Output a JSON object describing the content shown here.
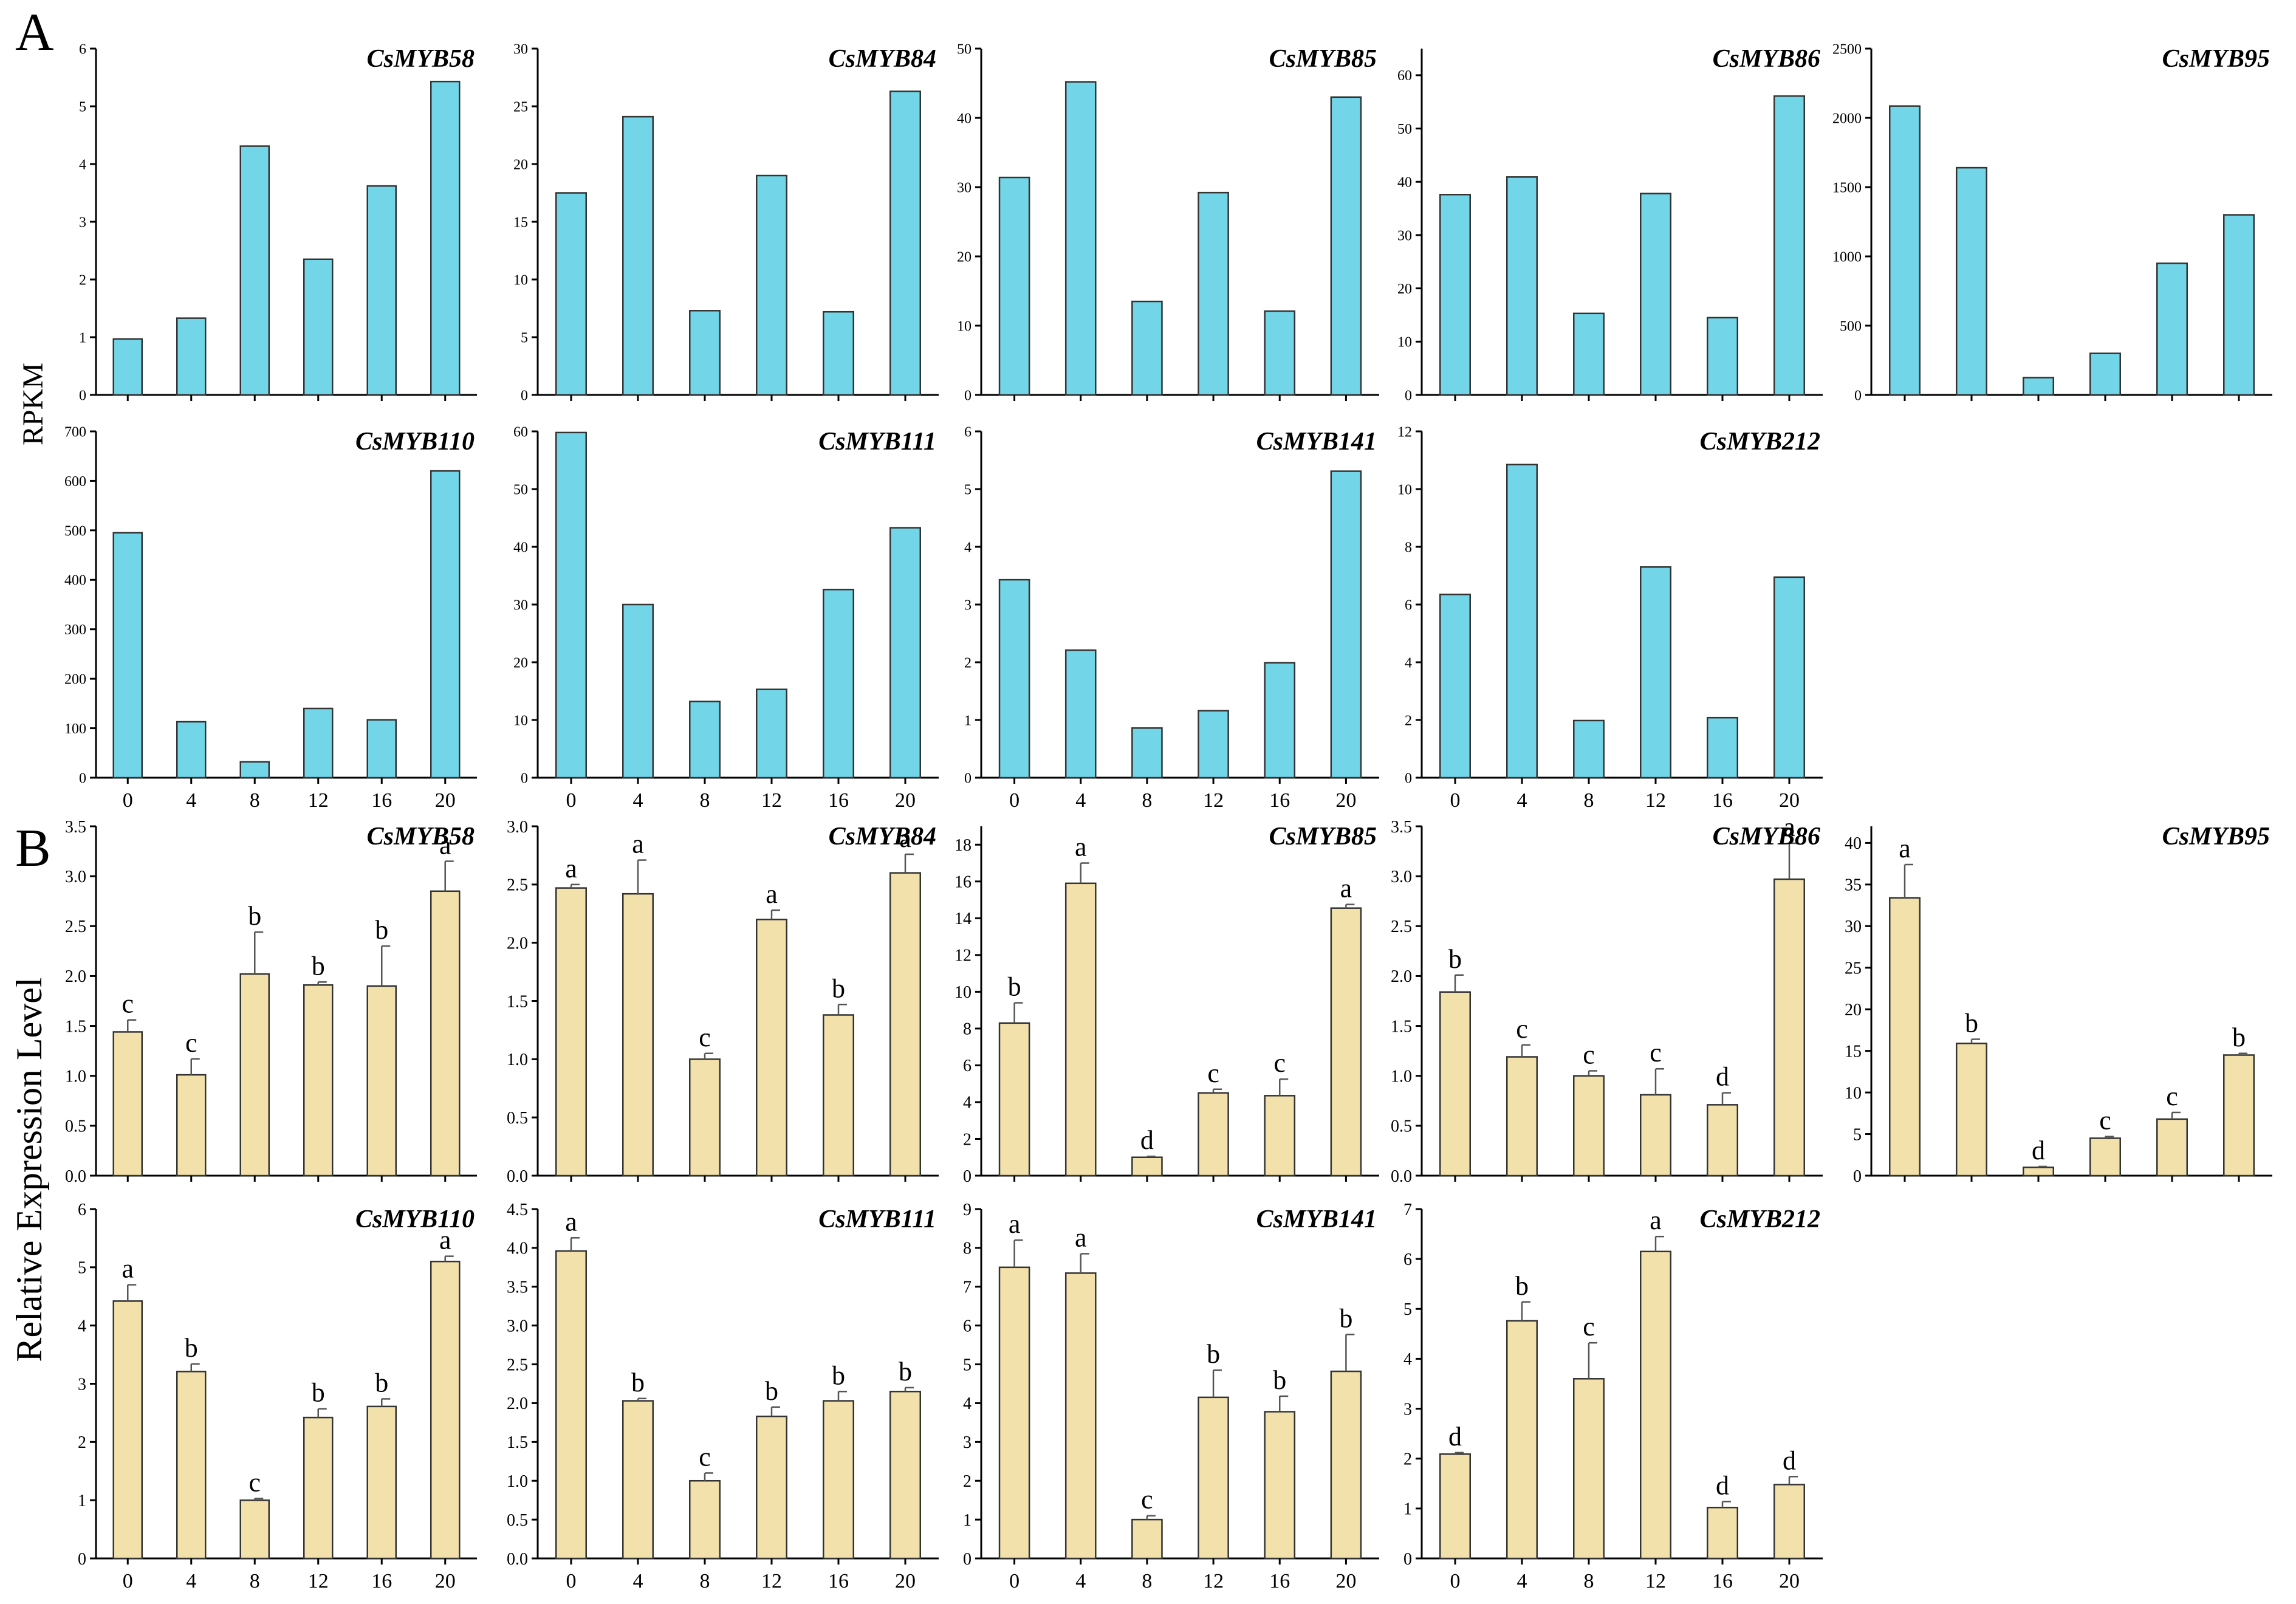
{
  "figure": {
    "panel_a_label": "A",
    "panel_b_label": "B",
    "rpkm_label": "RPKM",
    "rel_label": "Relative Expression Level",
    "bar_color_a": "#72d6e8",
    "bar_color_b": "#f3e1ab",
    "x_categories": [
      "0",
      "4",
      "8",
      "12",
      "16",
      "20"
    ]
  },
  "chart_data": [
    {
      "id": "A-CsMYB58",
      "panel": "A",
      "type": "bar",
      "title": "CsMYB58",
      "ylabel": "RPKM",
      "categories": [
        "0",
        "4",
        "8",
        "12",
        "16",
        "20"
      ],
      "values": [
        0.97,
        1.33,
        4.31,
        2.35,
        3.62,
        5.43
      ],
      "ylim": [
        0,
        6
      ],
      "yticks": [
        0,
        1,
        2,
        3,
        4,
        5,
        6
      ]
    },
    {
      "id": "A-CsMYB84",
      "panel": "A",
      "type": "bar",
      "title": "CsMYB84",
      "ylabel": "RPKM",
      "categories": [
        "0",
        "4",
        "8",
        "12",
        "16",
        "20"
      ],
      "values": [
        17.5,
        24.1,
        7.3,
        19.0,
        7.2,
        26.3
      ],
      "ylim": [
        0,
        30
      ],
      "yticks": [
        0,
        5,
        10,
        15,
        20,
        25,
        30
      ]
    },
    {
      "id": "A-CsMYB85",
      "panel": "A",
      "type": "bar",
      "title": "CsMYB85",
      "ylabel": "RPKM",
      "categories": [
        "0",
        "4",
        "8",
        "12",
        "16",
        "20"
      ],
      "values": [
        31.4,
        45.2,
        13.5,
        29.2,
        12.1,
        43.0
      ],
      "ylim": [
        0,
        50
      ],
      "yticks": [
        0,
        10,
        20,
        30,
        40,
        50
      ]
    },
    {
      "id": "A-CsMYB86",
      "panel": "A",
      "type": "bar",
      "title": "CsMYB86",
      "ylabel": "RPKM",
      "categories": [
        "0",
        "4",
        "8",
        "12",
        "16",
        "20"
      ],
      "values": [
        37.6,
        40.9,
        15.3,
        37.8,
        14.5,
        56.1
      ],
      "ylim": [
        0,
        65
      ],
      "yticks": [
        0,
        10,
        20,
        30,
        40,
        50,
        60
      ]
    },
    {
      "id": "A-CsMYB95",
      "panel": "A",
      "type": "bar",
      "title": "CsMYB95",
      "ylabel": "RPKM",
      "categories": [
        "0",
        "4",
        "8",
        "12",
        "16",
        "20"
      ],
      "values": [
        2085,
        1640,
        125,
        300,
        950,
        1300
      ],
      "ylim": [
        0,
        2500
      ],
      "yticks": [
        0,
        500,
        1000,
        1500,
        2000,
        2500
      ]
    },
    {
      "id": "A-CsMYB110",
      "panel": "A",
      "type": "bar",
      "title": "CsMYB110",
      "ylabel": "RPKM",
      "categories": [
        "0",
        "4",
        "8",
        "12",
        "16",
        "20"
      ],
      "values": [
        495,
        113,
        32,
        140,
        117,
        620
      ],
      "ylim": [
        0,
        700
      ],
      "yticks": [
        0,
        100,
        200,
        300,
        400,
        500,
        600,
        700
      ]
    },
    {
      "id": "A-CsMYB111",
      "panel": "A",
      "type": "bar",
      "title": "CsMYB111",
      "ylabel": "RPKM",
      "categories": [
        "0",
        "4",
        "8",
        "12",
        "16",
        "20"
      ],
      "values": [
        59.8,
        30.0,
        13.2,
        15.3,
        32.6,
        43.3
      ],
      "ylim": [
        0,
        60
      ],
      "yticks": [
        0,
        10,
        20,
        30,
        40,
        50,
        60
      ]
    },
    {
      "id": "A-CsMYB141",
      "panel": "A",
      "type": "bar",
      "title": "CsMYB141",
      "ylabel": "RPKM",
      "categories": [
        "0",
        "4",
        "8",
        "12",
        "16",
        "20"
      ],
      "values": [
        3.43,
        2.21,
        0.86,
        1.16,
        1.99,
        5.31
      ],
      "ylim": [
        0,
        6
      ],
      "yticks": [
        0,
        1,
        2,
        3,
        4,
        5,
        6
      ]
    },
    {
      "id": "A-CsMYB212",
      "panel": "A",
      "type": "bar",
      "title": "CsMYB212",
      "ylabel": "RPKM",
      "categories": [
        "0",
        "4",
        "8",
        "12",
        "16",
        "20"
      ],
      "values": [
        6.35,
        10.85,
        1.98,
        7.3,
        2.08,
        6.95
      ],
      "ylim": [
        0,
        12
      ],
      "yticks": [
        0,
        2,
        4,
        6,
        8,
        10,
        12
      ]
    },
    {
      "id": "B-CsMYB58",
      "panel": "B",
      "type": "bar",
      "title": "CsMYB58",
      "ylabel": "Relative Expression Level",
      "categories": [
        "0",
        "4",
        "8",
        "12",
        "16",
        "20"
      ],
      "values": [
        1.44,
        1.01,
        2.02,
        1.91,
        1.9,
        2.85
      ],
      "errors": [
        0.12,
        0.16,
        0.42,
        0.03,
        0.4,
        0.3
      ],
      "letters": [
        "c",
        "c",
        "b",
        "b",
        "b",
        "a"
      ],
      "ylim": [
        0,
        3.5
      ],
      "yticks": [
        0.0,
        0.5,
        1.0,
        1.5,
        2.0,
        2.5,
        3.0,
        3.5
      ]
    },
    {
      "id": "B-CsMYB84",
      "panel": "B",
      "type": "bar",
      "title": "CsMYB84",
      "ylabel": "Relative Expression Level",
      "categories": [
        "0",
        "4",
        "8",
        "12",
        "16",
        "20"
      ],
      "values": [
        2.47,
        2.42,
        1.0,
        2.2,
        1.38,
        2.6
      ],
      "errors": [
        0.03,
        0.29,
        0.05,
        0.08,
        0.09,
        0.16
      ],
      "letters": [
        "a",
        "a",
        "c",
        "a",
        "b",
        "a"
      ],
      "ylim": [
        0,
        3.0
      ],
      "yticks": [
        0.0,
        0.5,
        1.0,
        1.5,
        2.0,
        2.5,
        3.0
      ]
    },
    {
      "id": "B-CsMYB85",
      "panel": "B",
      "type": "bar",
      "title": "CsMYB85",
      "ylabel": "Relative Expression Level",
      "categories": [
        "0",
        "4",
        "8",
        "12",
        "16",
        "20"
      ],
      "values": [
        8.3,
        15.9,
        1.0,
        4.5,
        4.35,
        14.55
      ],
      "errors": [
        1.1,
        1.1,
        0.05,
        0.2,
        0.9,
        0.2
      ],
      "letters": [
        "b",
        "a",
        "d",
        "c",
        "c",
        "a"
      ],
      "ylim": [
        0,
        19
      ],
      "yticks": [
        0,
        2,
        4,
        6,
        8,
        10,
        12,
        14,
        16,
        18
      ]
    },
    {
      "id": "B-CsMYB86",
      "panel": "B",
      "type": "bar",
      "title": "CsMYB86",
      "ylabel": "Relative Expression Level",
      "categories": [
        "0",
        "4",
        "8",
        "12",
        "16",
        "20"
      ],
      "values": [
        1.84,
        1.19,
        1.0,
        0.81,
        0.71,
        2.97
      ],
      "errors": [
        0.17,
        0.12,
        0.05,
        0.26,
        0.12,
        0.36
      ],
      "letters": [
        "b",
        "c",
        "c",
        "c",
        "d",
        "a"
      ],
      "ylim": [
        0,
        3.5
      ],
      "yticks": [
        0.0,
        0.5,
        1.0,
        1.5,
        2.0,
        2.5,
        3.0,
        3.5
      ]
    },
    {
      "id": "B-CsMYB95",
      "panel": "B",
      "type": "bar",
      "title": "CsMYB95",
      "ylabel": "Relative Expression Level",
      "categories": [
        "0",
        "4",
        "8",
        "12",
        "16",
        "20"
      ],
      "values": [
        33.4,
        15.9,
        1.0,
        4.5,
        6.8,
        14.5
      ],
      "errors": [
        4.0,
        0.5,
        0.1,
        0.2,
        0.8,
        0.2
      ],
      "letters": [
        "a",
        "b",
        "d",
        "c",
        "c",
        "b"
      ],
      "ylim": [
        0,
        42
      ],
      "yticks": [
        0,
        5,
        10,
        15,
        20,
        25,
        30,
        35,
        40
      ]
    },
    {
      "id": "B-CsMYB110",
      "panel": "B",
      "type": "bar",
      "title": "CsMYB110",
      "ylabel": "Relative Expression Level",
      "categories": [
        "0",
        "4",
        "8",
        "12",
        "16",
        "20"
      ],
      "values": [
        4.42,
        3.21,
        1.0,
        2.42,
        2.61,
        5.1
      ],
      "errors": [
        0.28,
        0.13,
        0.03,
        0.15,
        0.13,
        0.09
      ],
      "letters": [
        "a",
        "b",
        "c",
        "b",
        "b",
        "a"
      ],
      "ylim": [
        0,
        6
      ],
      "yticks": [
        0,
        1,
        2,
        3,
        4,
        5,
        6
      ]
    },
    {
      "id": "B-CsMYB111",
      "panel": "B",
      "type": "bar",
      "title": "CsMYB111",
      "ylabel": "Relative Expression Level",
      "categories": [
        "0",
        "4",
        "8",
        "12",
        "16",
        "20"
      ],
      "values": [
        3.96,
        2.03,
        1.0,
        1.83,
        2.03,
        2.15
      ],
      "errors": [
        0.17,
        0.03,
        0.1,
        0.12,
        0.12,
        0.05
      ],
      "letters": [
        "a",
        "b",
        "c",
        "b",
        "b",
        "b"
      ],
      "ylim": [
        0,
        4.5
      ],
      "yticks": [
        0.0,
        0.5,
        1.0,
        1.5,
        2.0,
        2.5,
        3.0,
        3.5,
        4.0,
        4.5
      ]
    },
    {
      "id": "B-CsMYB141",
      "panel": "B",
      "type": "bar",
      "title": "CsMYB141",
      "ylabel": "Relative Expression Level",
      "categories": [
        "0",
        "4",
        "8",
        "12",
        "16",
        "20"
      ],
      "values": [
        7.5,
        7.35,
        1.0,
        4.15,
        3.78,
        4.82
      ],
      "errors": [
        0.7,
        0.5,
        0.1,
        0.7,
        0.4,
        0.95
      ],
      "letters": [
        "a",
        "a",
        "c",
        "b",
        "b",
        "b"
      ],
      "ylim": [
        0,
        9
      ],
      "yticks": [
        0,
        1,
        2,
        3,
        4,
        5,
        6,
        7,
        8,
        9
      ]
    },
    {
      "id": "B-CsMYB212",
      "panel": "B",
      "type": "bar",
      "title": "CsMYB212",
      "ylabel": "Relative Expression Level",
      "categories": [
        "0",
        "4",
        "8",
        "12",
        "16",
        "20"
      ],
      "values": [
        2.09,
        4.76,
        3.6,
        6.15,
        1.02,
        1.48
      ],
      "errors": [
        0.03,
        0.38,
        0.72,
        0.3,
        0.12,
        0.16
      ],
      "letters": [
        "d",
        "b",
        "c",
        "a",
        "d",
        "d"
      ],
      "ylim": [
        0,
        7
      ],
      "yticks": [
        0,
        1,
        2,
        3,
        4,
        5,
        6,
        7
      ]
    }
  ]
}
